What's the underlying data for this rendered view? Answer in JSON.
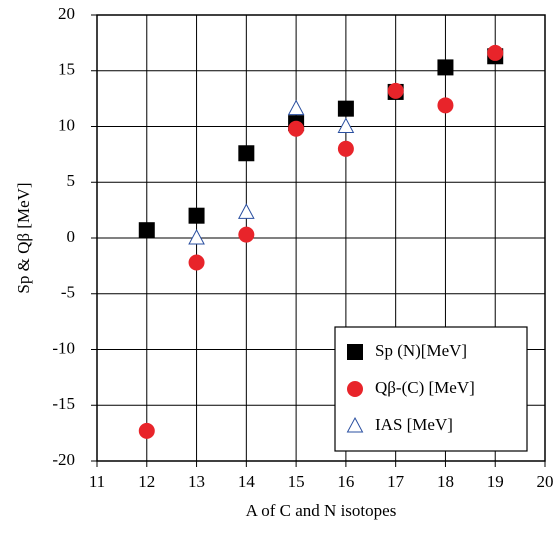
{
  "chart_data": {
    "type": "scatter",
    "x_label": "A of C and N isotopes",
    "y_label": "Sp & Qβ [MeV]",
    "x": [
      12,
      13,
      14,
      15,
      16,
      17,
      18,
      19
    ],
    "series": [
      {
        "name": "Sp (N)[MeV]",
        "color": "#000000",
        "marker": "square",
        "values": [
          0.7,
          2.0,
          7.6,
          10.3,
          11.6,
          13.1,
          15.3,
          16.3
        ]
      },
      {
        "name": "Qβ-(C) [MeV]",
        "color": "#e8242a",
        "marker": "circle",
        "values": [
          -17.3,
          -2.2,
          0.3,
          9.8,
          8.0,
          13.2,
          11.9,
          16.6
        ]
      },
      {
        "name": "IAS [MeV]",
        "color": "#2a4fa0",
        "marker": "triangle",
        "values": [
          null,
          0.0,
          2.3,
          11.6,
          10.0,
          null,
          null,
          null
        ]
      }
    ],
    "xlim": [
      11,
      20
    ],
    "xticks": [
      11,
      12,
      13,
      14,
      15,
      16,
      17,
      18,
      19,
      20
    ],
    "ylim": [
      -20,
      20
    ],
    "yticks": [
      -20,
      -15,
      -10,
      -5,
      0,
      5,
      10,
      15,
      20
    ],
    "grid": true,
    "legend": "lower right"
  }
}
